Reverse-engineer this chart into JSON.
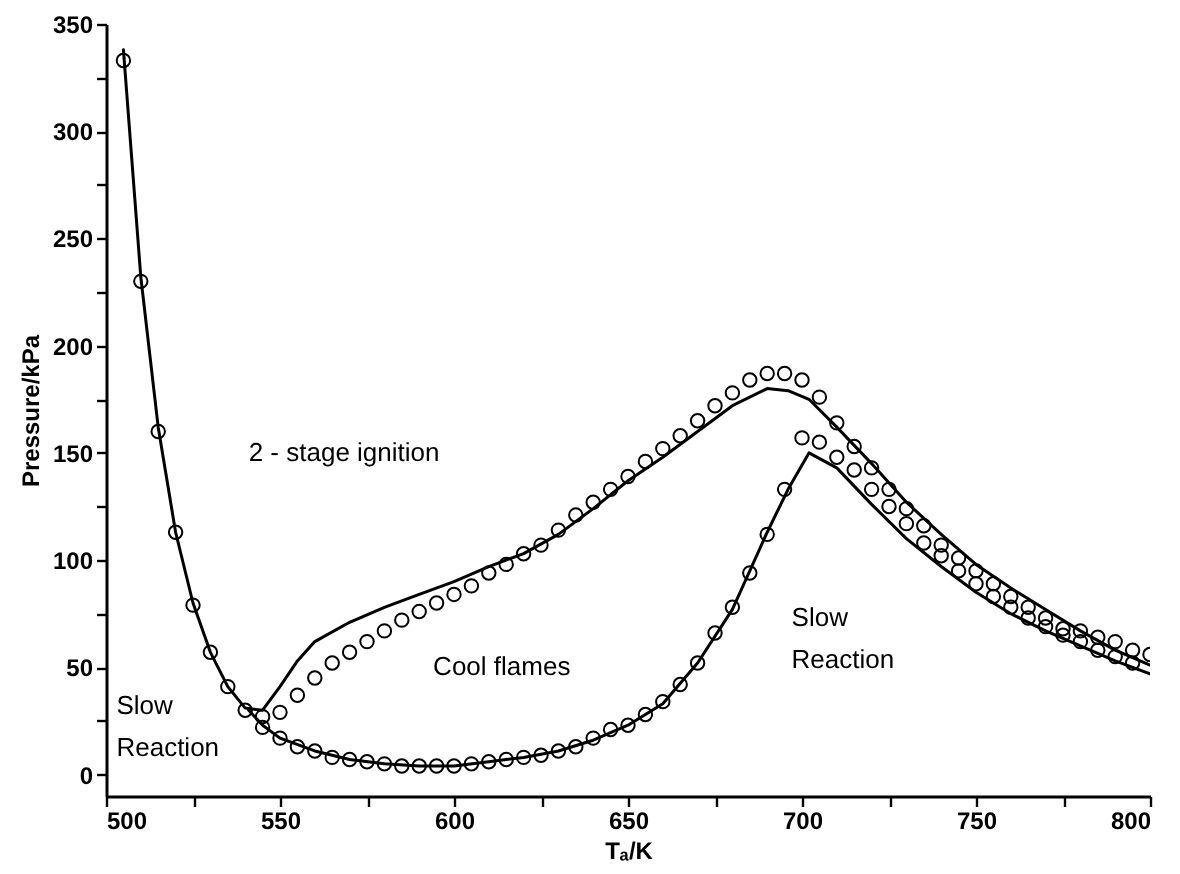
{
  "chart_data": {
    "type": "scatter",
    "xlabel": "Tₐ/K",
    "ylabel": "Pressure/kPa",
    "xlim": [
      500,
      800
    ],
    "ylim": [
      -10,
      350
    ],
    "xticks": [
      500,
      {
        "value": 525,
        "label": null
      },
      550,
      {
        "value": 575,
        "label": null
      },
      600,
      {
        "value": 625,
        "label": null
      },
      650,
      {
        "value": 675,
        "label": null
      },
      700,
      {
        "value": 725,
        "label": null
      },
      750,
      {
        "value": 775,
        "label": null
      },
      800
    ],
    "yticks": [
      0,
      {
        "value": 25,
        "label": null
      },
      50,
      {
        "value": 75,
        "label": null
      },
      100,
      {
        "value": 125,
        "label": null
      },
      150,
      {
        "value": 175,
        "label": null
      },
      200,
      {
        "value": 225,
        "label": null
      },
      250,
      {
        "value": 275,
        "label": null
      },
      300,
      {
        "value": 325,
        "label": null
      },
      350
    ],
    "grid": false,
    "annotations": [
      "2 - stage ignition",
      "Cool flames",
      "Slow\nReaction",
      "Slow\nReaction"
    ],
    "series": [
      {
        "color": "#000000",
        "x": [
          505,
          510,
          515,
          520,
          525,
          530,
          535,
          540,
          545,
          550,
          555,
          560,
          565,
          570,
          575,
          580,
          585,
          590,
          595,
          600,
          605,
          610,
          615,
          620,
          625,
          630,
          635,
          640,
          645,
          650,
          655,
          660,
          665,
          670,
          675,
          680,
          685,
          690,
          695,
          700,
          705,
          710,
          715,
          720,
          725,
          730,
          735,
          740,
          745,
          750,
          755,
          760,
          765,
          770,
          775,
          780,
          785,
          790,
          795,
          800
        ],
        "values": [
          333,
          230,
          160,
          113,
          79,
          57,
          41,
          30,
          27,
          29,
          37,
          45,
          52,
          57,
          62,
          67,
          72,
          76,
          80,
          84,
          88,
          94,
          98,
          103,
          107,
          114,
          121,
          127,
          133,
          139,
          146,
          152,
          158,
          165,
          172,
          178,
          184,
          187,
          187,
          184,
          176,
          164,
          153,
          143,
          133,
          124,
          116,
          107,
          101,
          95,
          89,
          83,
          78,
          73,
          68,
          67,
          64,
          62,
          58,
          56
        ]
      },
      {
        "color": "#000000",
        "x": [
          545,
          550,
          555,
          560,
          565,
          570,
          575,
          580,
          585,
          590,
          595,
          600,
          605,
          610,
          615,
          620,
          625,
          630,
          635,
          640,
          645,
          650,
          655,
          660,
          665,
          670,
          675,
          680,
          685,
          690,
          695,
          700,
          705,
          710,
          715,
          720,
          725,
          730,
          735,
          740,
          745,
          750,
          755,
          760,
          765,
          770,
          775,
          780,
          785,
          790,
          795
        ],
        "values": [
          22,
          17,
          13,
          11,
          8,
          7,
          6,
          5,
          4,
          4,
          4,
          4,
          5,
          6,
          7,
          8,
          9,
          11,
          13,
          17,
          21,
          23,
          28,
          34,
          42,
          52,
          66,
          78,
          94,
          112,
          133,
          157,
          155,
          148,
          142,
          133,
          125,
          117,
          108,
          102,
          95,
          89,
          83,
          78,
          73,
          69,
          65,
          62,
          58,
          55,
          52
        ]
      },
      {
        "type": "line",
        "color": "#000000",
        "x": [
          505,
          510,
          515,
          520,
          525,
          530,
          535,
          540,
          545,
          550,
          555,
          560,
          570,
          580,
          590,
          600,
          610,
          620,
          630,
          640,
          650,
          660,
          670,
          680,
          690,
          696,
          702,
          710,
          720,
          730,
          740,
          750,
          760,
          770,
          780,
          790,
          800
        ],
        "values": [
          338,
          232,
          162,
          113,
          80,
          57,
          41,
          31,
          30,
          41,
          53,
          62,
          71,
          78,
          84,
          90,
          97,
          103,
          112,
          124,
          137,
          148,
          160,
          172,
          180,
          179,
          175,
          162,
          145,
          127,
          112,
          98,
          87,
          77,
          67,
          58,
          51
        ]
      },
      {
        "type": "line",
        "color": "#000000",
        "x": [
          541,
          545,
          550,
          560,
          570,
          580,
          590,
          600,
          610,
          620,
          630,
          640,
          650,
          660,
          670,
          680,
          690,
          696,
          702,
          710,
          720,
          730,
          740,
          750,
          760,
          770,
          780,
          790,
          800
        ],
        "values": [
          30,
          23,
          17,
          11,
          7,
          5,
          4,
          4,
          6,
          8,
          11,
          16,
          23,
          33,
          52,
          77,
          113,
          133,
          150,
          143,
          126,
          110,
          97,
          85,
          75,
          67,
          60,
          53,
          47
        ]
      }
    ]
  }
}
